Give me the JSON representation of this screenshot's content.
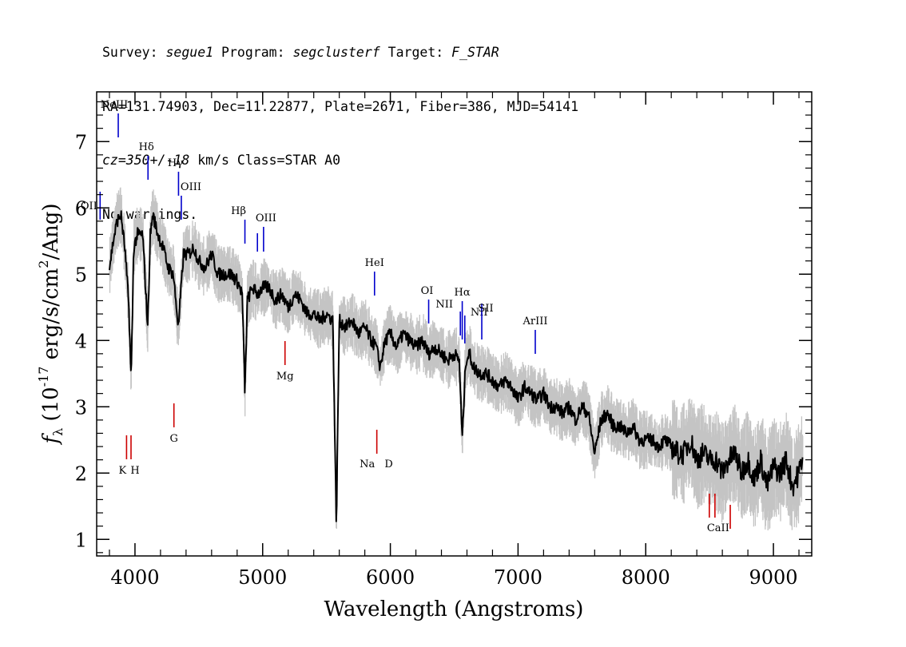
{
  "header": {
    "line1_a": "Survey: ",
    "survey": "segue1",
    "line1_b": " Program: ",
    "program": "segclusterf",
    "line1_c": " Target: ",
    "target": "F_STAR",
    "line2": "RA=131.74903, Dec=11.22877, Plate=2671, Fiber=386, MJD=54141",
    "line3_cz": "cz=350+/-18",
    "line3_rest": " km/s Class=STAR A0",
    "line4": "No warnings."
  },
  "chart_data": {
    "type": "line",
    "title": "",
    "xlabel": "Wavelength (Angstroms)",
    "ylabel_prefix": "f",
    "ylabel_sub": "λ",
    "ylabel_rest": " (10",
    "ylabel_exp": "-17",
    "ylabel_unit": " erg/s/cm",
    "ylabel_sq": "2",
    "ylabel_end": "/Ang)",
    "xlim": [
      3700,
      9300
    ],
    "ylim": [
      0.75,
      7.75
    ],
    "xticks": [
      4000,
      5000,
      6000,
      7000,
      8000,
      9000
    ],
    "yticks": [
      1,
      2,
      3,
      4,
      5,
      6,
      7
    ],
    "grid": false,
    "colors": {
      "flux": "#000000",
      "noise": "#c4c4c4",
      "emission": "#0000cc",
      "absorption": "#cc0000"
    },
    "series": [
      {
        "role": "smoothed flux",
        "x": [
          3800,
          3830,
          3860,
          3890,
          3920,
          3950,
          3970,
          3990,
          4020,
          4060,
          4100,
          4120,
          4140,
          4180,
          4220,
          4260,
          4300,
          4340,
          4380,
          4420,
          4460,
          4500,
          4550,
          4600,
          4650,
          4700,
          4750,
          4800,
          4840,
          4861,
          4880,
          4920,
          4960,
          5000,
          5050,
          5100,
          5150,
          5200,
          5250,
          5300,
          5350,
          5400,
          5450,
          5500,
          5550,
          5577,
          5600,
          5650,
          5700,
          5750,
          5800,
          5850,
          5890,
          5920,
          5960,
          6000,
          6050,
          6100,
          6150,
          6200,
          6250,
          6300,
          6350,
          6400,
          6450,
          6500,
          6540,
          6563,
          6590,
          6620,
          6650,
          6700,
          6750,
          6800,
          6850,
          6900,
          6950,
          7000,
          7050,
          7100,
          7150,
          7200,
          7250,
          7300,
          7350,
          7400,
          7450,
          7500,
          7550,
          7600,
          7650,
          7700,
          7750,
          7800,
          7850,
          7900,
          7950,
          8000,
          8050,
          8100,
          8150,
          8200,
          8250,
          8300,
          8350,
          8400,
          8450,
          8500,
          8550,
          8600,
          8650,
          8700,
          8750,
          8800,
          8850,
          8900,
          8950,
          9000,
          9050,
          9100,
          9150,
          9200,
          9230
        ],
        "y": [
          5.1,
          5.5,
          5.8,
          5.9,
          5.4,
          4.6,
          3.4,
          5.4,
          5.6,
          5.6,
          4.2,
          5.6,
          5.9,
          5.6,
          5.4,
          5.1,
          5.0,
          4.2,
          5.3,
          5.3,
          5.4,
          5.2,
          5.1,
          5.3,
          5.0,
          5.0,
          5.0,
          4.9,
          4.7,
          3.2,
          4.6,
          4.8,
          4.7,
          4.8,
          4.8,
          4.6,
          4.7,
          4.5,
          4.7,
          4.6,
          4.4,
          4.4,
          4.3,
          4.4,
          4.3,
          1.2,
          4.3,
          4.2,
          4.3,
          4.1,
          4.2,
          4.0,
          3.9,
          3.6,
          4.0,
          4.1,
          3.9,
          4.1,
          4.0,
          3.9,
          4.0,
          3.8,
          3.9,
          3.8,
          3.7,
          3.8,
          3.7,
          2.5,
          3.7,
          3.8,
          3.6,
          3.5,
          3.5,
          3.4,
          3.3,
          3.4,
          3.3,
          3.1,
          3.3,
          3.2,
          3.1,
          3.2,
          3.0,
          3.0,
          2.9,
          3.0,
          2.8,
          3.0,
          2.9,
          2.3,
          2.8,
          2.9,
          2.7,
          2.7,
          2.6,
          2.7,
          2.5,
          2.5,
          2.5,
          2.4,
          2.5,
          2.4,
          2.3,
          2.3,
          2.5,
          2.2,
          2.3,
          2.2,
          2.2,
          2.0,
          2.2,
          2.3,
          2.0,
          2.2,
          1.9,
          2.2,
          1.8,
          2.1,
          2.0,
          2.2,
          1.8,
          2.0,
          2.3
        ]
      }
    ],
    "emission_lines": [
      {
        "label": "OII",
        "wave": 3727
      },
      {
        "label": "NeIII",
        "wave": 3869
      },
      {
        "label": "Hδ",
        "wave": 4102
      },
      {
        "label": "Hγ",
        "wave": 4341
      },
      {
        "label": "OIII",
        "wave": 4363
      },
      {
        "label": "Hβ",
        "wave": 4861
      },
      {
        "label": "OIII",
        "wave": 5007
      },
      {
        "label": "HeI",
        "wave": 5876
      },
      {
        "label": "OI",
        "wave": 6300
      },
      {
        "label": "NII",
        "wave": 6548
      },
      {
        "label": "Hα",
        "wave": 6563
      },
      {
        "label": "NII",
        "wave": 6583
      },
      {
        "label": "SII",
        "wave": 6716
      },
      {
        "label": "ArIII",
        "wave": 7135
      }
    ],
    "absorption_lines": [
      {
        "label": "K",
        "wave": 3934
      },
      {
        "label": "H",
        "wave": 3969
      },
      {
        "label": "G",
        "wave": 4305
      },
      {
        "label": "Mg",
        "wave": 5175
      },
      {
        "label": "Na",
        "wave": 5894
      },
      {
        "label": "D",
        "wave": 5894
      },
      {
        "label": "CaII",
        "wave": 8542
      }
    ]
  }
}
